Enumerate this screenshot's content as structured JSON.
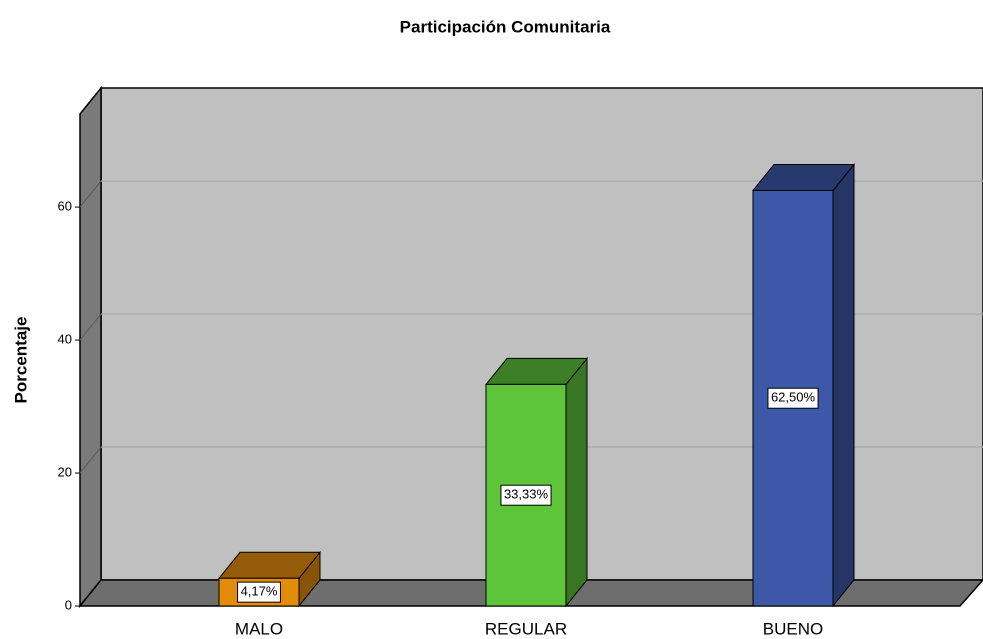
{
  "chart_data": {
    "type": "bar3d",
    "title": "Participación Comunitaria",
    "y_label": "Porcentaje",
    "categories": [
      "MALO",
      "REGULAR",
      "BUENO"
    ],
    "values": [
      4.17,
      33.33,
      62.5
    ],
    "value_labels": [
      "4,17%",
      "33,33%",
      "62,50%"
    ],
    "colors": [
      "#e38c0c",
      "#5ec43a",
      "#3d58a8"
    ],
    "ylim": [
      0,
      74
    ],
    "yticks": [
      0,
      20,
      40,
      60
    ],
    "grid": true
  }
}
